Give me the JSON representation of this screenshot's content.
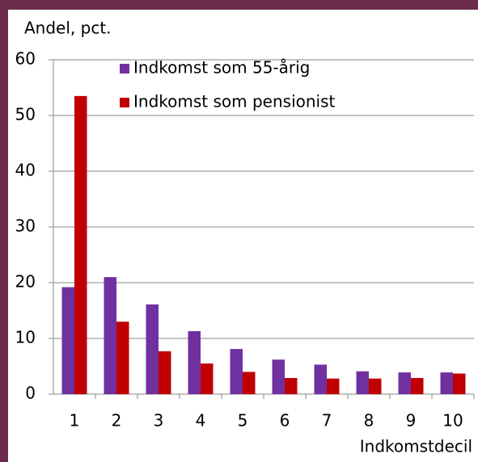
{
  "chart_data": {
    "type": "bar",
    "y_label": "Andel, pct.",
    "x_label": "Indkomstdecil",
    "categories": [
      "1",
      "2",
      "3",
      "4",
      "5",
      "6",
      "7",
      "8",
      "9",
      "10"
    ],
    "series": [
      {
        "name": "Indkomst som 55-årig",
        "color": "#7030a0",
        "values": [
          19.2,
          21,
          16.1,
          11.3,
          8.1,
          6.2,
          5.3,
          4.1,
          3.9,
          3.9
        ]
      },
      {
        "name": "Indkomst som pensionist",
        "color": "#c00000",
        "values": [
          53.5,
          13,
          7.7,
          5.5,
          4,
          2.9,
          2.8,
          2.8,
          2.9,
          3.7
        ]
      }
    ],
    "ylim": [
      0,
      60
    ],
    "yticks": [
      0,
      10,
      20,
      30,
      40,
      50,
      60
    ],
    "grid": true,
    "legend": "top"
  }
}
